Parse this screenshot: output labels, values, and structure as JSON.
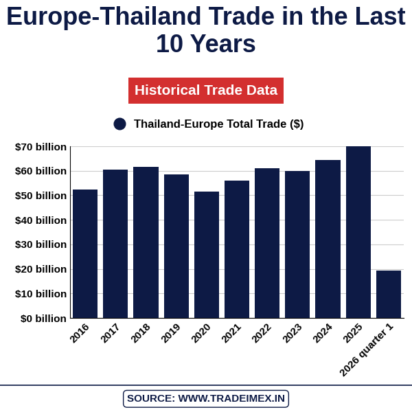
{
  "chart_data": {
    "type": "bar",
    "title": "Europe-Thailand Trade in the Last 10 Years",
    "subtitle": "Historical Trade Data",
    "source": "SOURCE: WWW.TRADEIMEX.IN",
    "categories": [
      "2016",
      "2017",
      "2018",
      "2019",
      "2020",
      "2021",
      "2022",
      "2023",
      "2024",
      "2025",
      "2026 quarter 1"
    ],
    "series": [
      {
        "name": "Thailand-Europe Total Trade ($)",
        "color": "#0d1a45",
        "values": [
          52.5,
          60.5,
          61.5,
          58.5,
          51.5,
          56,
          61,
          60,
          64.5,
          70,
          19.5
        ]
      }
    ],
    "ylim": [
      0,
      70
    ],
    "yticks": [
      {
        "value": 0,
        "label": "$0 billion"
      },
      {
        "value": 10,
        "label": "$10 billion"
      },
      {
        "value": 20,
        "label": "$20 billion"
      },
      {
        "value": 30,
        "label": "$30 billion"
      },
      {
        "value": 40,
        "label": "$40 billion"
      },
      {
        "value": 50,
        "label": "$50 billion"
      },
      {
        "value": 60,
        "label": "$60 billion"
      },
      {
        "value": 70,
        "label": "$70 billion"
      }
    ],
    "grid": true,
    "legend": "upper center"
  }
}
